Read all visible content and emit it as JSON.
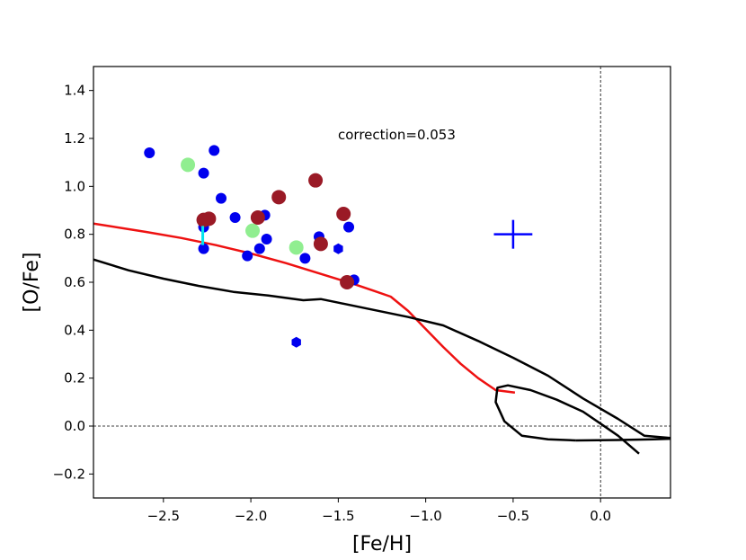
{
  "chart_data": {
    "type": "scatter",
    "title": "",
    "xlabel": "[Fe/H]",
    "ylabel": "[O/Fe]",
    "xlim": [
      -2.9,
      0.4
    ],
    "ylim": [
      -0.3,
      1.5
    ],
    "xticks": [
      -2.5,
      -2.0,
      -1.5,
      -1.0,
      -0.5,
      0.0
    ],
    "xtick_labels": [
      "−2.5",
      "−2.0",
      "−1.5",
      "−1.0",
      "−0.5",
      "0.0"
    ],
    "yticks": [
      -0.2,
      0.0,
      0.2,
      0.4,
      0.6,
      0.8,
      1.0,
      1.2,
      1.4
    ],
    "ytick_labels": [
      "−0.2",
      "0.0",
      "0.2",
      "0.4",
      "0.6",
      "0.8",
      "1.0",
      "1.2",
      "1.4"
    ],
    "annotation": "correction=0.053",
    "reference_lines": {
      "horizontal_y": 0.0,
      "vertical_x": 0.0
    },
    "error_cross": {
      "x": -0.5,
      "y": 0.8,
      "xerr": 0.11,
      "yerr": 0.06,
      "color": "#0000ff"
    },
    "series": [
      {
        "name": "blue-dots",
        "marker": "circle",
        "color": "#0000ee",
        "points": [
          [
            -2.58,
            1.14
          ],
          [
            -2.27,
            1.055
          ],
          [
            -2.21,
            1.15
          ],
          [
            -2.17,
            0.95
          ],
          [
            -2.09,
            0.87
          ],
          [
            -2.27,
            0.83
          ],
          [
            -2.27,
            0.74
          ],
          [
            -2.02,
            0.71
          ],
          [
            -1.95,
            0.74
          ],
          [
            -1.91,
            0.78
          ],
          [
            -1.92,
            0.88
          ],
          [
            -1.69,
            0.7
          ],
          [
            -1.61,
            0.79
          ],
          [
            -1.44,
            0.83
          ],
          [
            -1.41,
            0.61
          ]
        ]
      },
      {
        "name": "blue-hexagons",
        "marker": "hexagon",
        "color": "#0000ee",
        "points": [
          [
            -1.5,
            0.74
          ],
          [
            -1.74,
            0.35
          ]
        ]
      },
      {
        "name": "light-green",
        "marker": "circle",
        "color": "#90ee90",
        "points": [
          [
            -2.36,
            1.09
          ],
          [
            -1.99,
            0.815
          ],
          [
            -1.74,
            0.745
          ]
        ]
      },
      {
        "name": "dark-red",
        "marker": "circle",
        "color": "#9a1a26",
        "points": [
          [
            -2.27,
            0.86
          ],
          [
            -2.24,
            0.865
          ],
          [
            -1.84,
            0.955
          ],
          [
            -1.96,
            0.87
          ],
          [
            -1.63,
            1.025
          ],
          [
            -1.6,
            0.76
          ],
          [
            -1.47,
            0.885
          ],
          [
            -1.45,
            0.6
          ]
        ]
      },
      {
        "name": "cyan-errorbar",
        "marker": "vline",
        "color": "#00e5ee",
        "points": [
          [
            -2.275,
            0.835,
            0.755
          ]
        ]
      },
      {
        "name": "red-curve",
        "type": "line",
        "color": "#ee1111",
        "points": [
          [
            -2.9,
            0.845
          ],
          [
            -2.6,
            0.81
          ],
          [
            -2.4,
            0.785
          ],
          [
            -2.2,
            0.755
          ],
          [
            -2.0,
            0.72
          ],
          [
            -1.8,
            0.68
          ],
          [
            -1.6,
            0.635
          ],
          [
            -1.4,
            0.59
          ],
          [
            -1.3,
            0.565
          ],
          [
            -1.2,
            0.54
          ],
          [
            -1.1,
            0.48
          ],
          [
            -1.0,
            0.405
          ],
          [
            -0.9,
            0.33
          ],
          [
            -0.8,
            0.26
          ],
          [
            -0.7,
            0.2
          ],
          [
            -0.6,
            0.15
          ],
          [
            -0.49,
            0.14
          ]
        ]
      },
      {
        "name": "black-curve",
        "type": "line",
        "color": "#000000",
        "points": [
          [
            -2.9,
            0.695
          ],
          [
            -2.7,
            0.65
          ],
          [
            -2.5,
            0.615
          ],
          [
            -2.3,
            0.585
          ],
          [
            -2.1,
            0.56
          ],
          [
            -1.9,
            0.545
          ],
          [
            -1.7,
            0.525
          ],
          [
            -1.6,
            0.53
          ],
          [
            -1.5,
            0.515
          ],
          [
            -1.3,
            0.485
          ],
          [
            -1.1,
            0.455
          ],
          [
            -0.9,
            0.42
          ],
          [
            -0.7,
            0.355
          ],
          [
            -0.5,
            0.285
          ],
          [
            -0.3,
            0.21
          ],
          [
            -0.1,
            0.115
          ],
          [
            0.1,
            0.03
          ],
          [
            0.25,
            -0.04
          ],
          [
            0.4,
            -0.05
          ]
        ]
      },
      {
        "name": "black-loop",
        "type": "line",
        "color": "#000000",
        "points": [
          [
            -0.14,
            -0.06
          ],
          [
            -0.3,
            -0.055
          ],
          [
            -0.45,
            -0.04
          ],
          [
            -0.55,
            0.02
          ],
          [
            -0.6,
            0.1
          ],
          [
            -0.59,
            0.16
          ],
          [
            -0.53,
            0.17
          ],
          [
            -0.4,
            0.15
          ],
          [
            -0.25,
            0.11
          ],
          [
            -0.1,
            0.06
          ],
          [
            0.0,
            0.01
          ],
          [
            0.1,
            -0.04
          ],
          [
            0.22,
            -0.115
          ]
        ]
      },
      {
        "name": "black-tail",
        "type": "line",
        "color": "#000000",
        "points": [
          [
            -0.14,
            -0.06
          ],
          [
            0.1,
            -0.058
          ],
          [
            0.3,
            -0.055
          ],
          [
            0.4,
            -0.053
          ]
        ]
      }
    ]
  }
}
